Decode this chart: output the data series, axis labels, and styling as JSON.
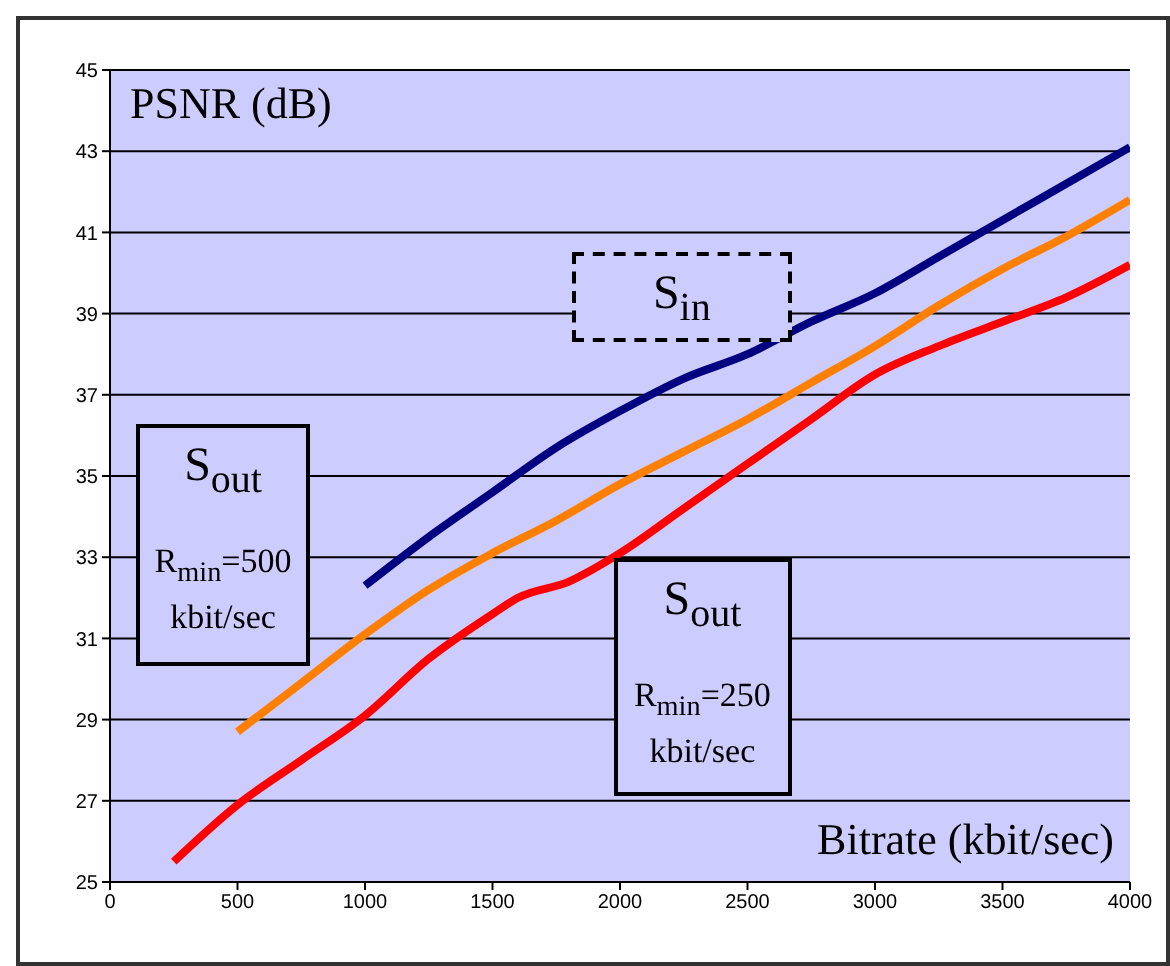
{
  "chart_data": {
    "type": "line",
    "xlabel": "Bitrate (kbit/sec)",
    "ylabel": "PSNR (dB)",
    "xlim": [
      0,
      4000
    ],
    "xticks": [
      0,
      500,
      1000,
      1500,
      2000,
      2500,
      3000,
      3500,
      4000
    ],
    "ylim": [
      25,
      45
    ],
    "yticks": [
      25,
      27,
      29,
      31,
      33,
      35,
      37,
      39,
      41,
      43,
      45
    ],
    "grid": "y",
    "marker": "none",
    "line_style": "solid",
    "series": [
      {
        "color": "#000080",
        "x": [
          1000,
          1250,
          1500,
          1750,
          2000,
          2250,
          2500,
          2750,
          3000,
          3250,
          3500,
          3750,
          4000
        ],
        "values": [
          32.3,
          33.5,
          34.6,
          35.7,
          36.6,
          37.4,
          38.0,
          38.8,
          39.5,
          40.4,
          41.3,
          42.2,
          43.1
        ]
      },
      {
        "color": "#ff8000",
        "x": [
          500,
          750,
          1000,
          1250,
          1500,
          1750,
          2000,
          2250,
          2500,
          2750,
          3000,
          3250,
          3500,
          3750,
          4000
        ],
        "values": [
          28.7,
          29.9,
          31.1,
          32.2,
          33.1,
          33.9,
          34.8,
          35.6,
          36.4,
          37.3,
          38.2,
          39.2,
          40.1,
          40.9,
          41.8
        ]
      },
      {
        "color": "#ff0000",
        "x": [
          250,
          500,
          750,
          1000,
          1250,
          1500,
          1600,
          1800,
          2000,
          2250,
          2500,
          2750,
          3000,
          3250,
          3500,
          3750,
          4000
        ],
        "values": [
          25.5,
          26.9,
          28.0,
          29.1,
          30.5,
          31.6,
          32.0,
          32.4,
          33.1,
          34.2,
          35.3,
          36.4,
          37.5,
          38.2,
          38.8,
          39.4,
          40.2
        ]
      }
    ],
    "annotations": [
      "S$_{out}$",
      "R$_{min}$=500 kbit/sec",
      "S$_{in}$",
      "S$_{out}$",
      "R$_{min}$=250 kbit/sec"
    ]
  }
}
